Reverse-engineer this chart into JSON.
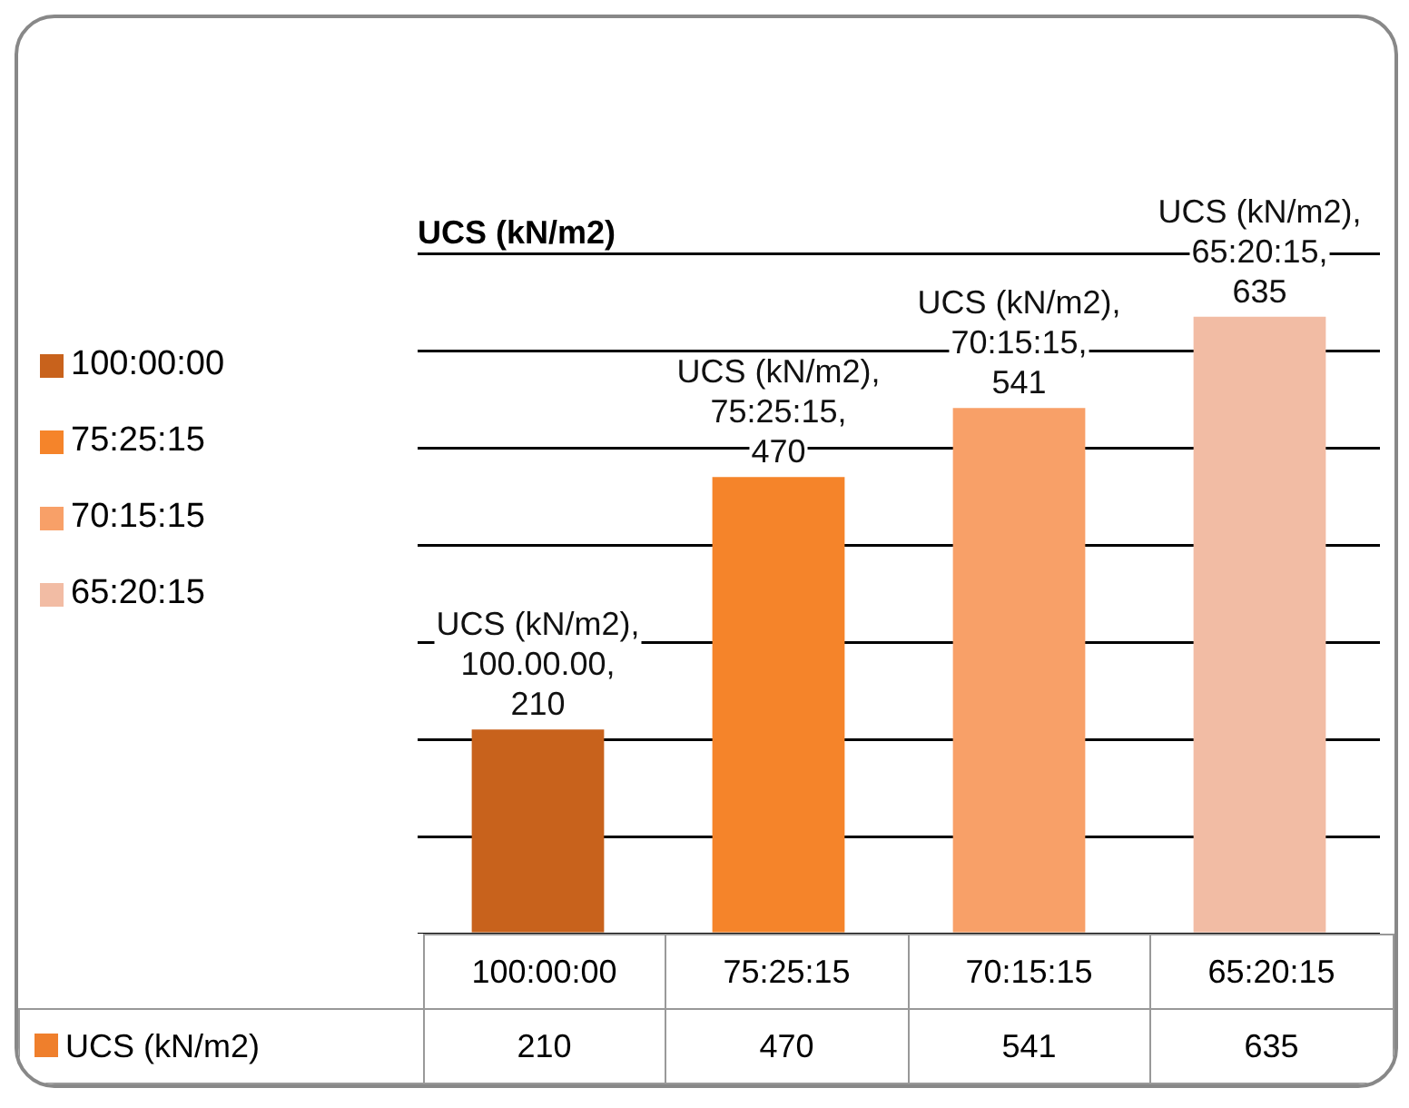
{
  "chart_data": {
    "type": "bar",
    "title": "UCS (kN/m2)",
    "categories": [
      "100:00:00",
      "75:25:15",
      "70:15:15",
      "65:20:15"
    ],
    "series": [
      {
        "name": "UCS (kN/m2)",
        "color": "#ef7f2c",
        "colors": [
          "#c8621c",
          "#f5842a",
          "#f8a068",
          "#f2bca4"
        ],
        "values": [
          210,
          470,
          541,
          635
        ]
      }
    ],
    "annotations": [
      {
        "text": "UCS (kN/m2), 100.00.00, 210",
        "x": "100:00:00",
        "y": 210
      },
      {
        "text": "UCS (kN/m2), 75:25:15, 470",
        "x": "75:25:15",
        "y": 470
      },
      {
        "text": "UCS (kN/m2), 70:15:15, 541",
        "x": "70:15:15",
        "y": 541
      },
      {
        "text": "UCS (kN/m2), 65:20:15, 635",
        "x": "65:20:15",
        "y": 635
      }
    ],
    "ylim": [
      0,
      700
    ],
    "yticks": [
      {
        "value": 0,
        "label": null
      },
      {
        "value": 100,
        "label": null
      },
      {
        "value": 200,
        "label": null
      },
      {
        "value": 300,
        "label": null
      },
      {
        "value": 400,
        "label": null
      },
      {
        "value": 500,
        "label": null
      },
      {
        "value": 600,
        "label": null
      },
      {
        "value": 700,
        "label": null
      }
    ],
    "grid": "y",
    "legend": "left",
    "data_labels": true
  }
}
